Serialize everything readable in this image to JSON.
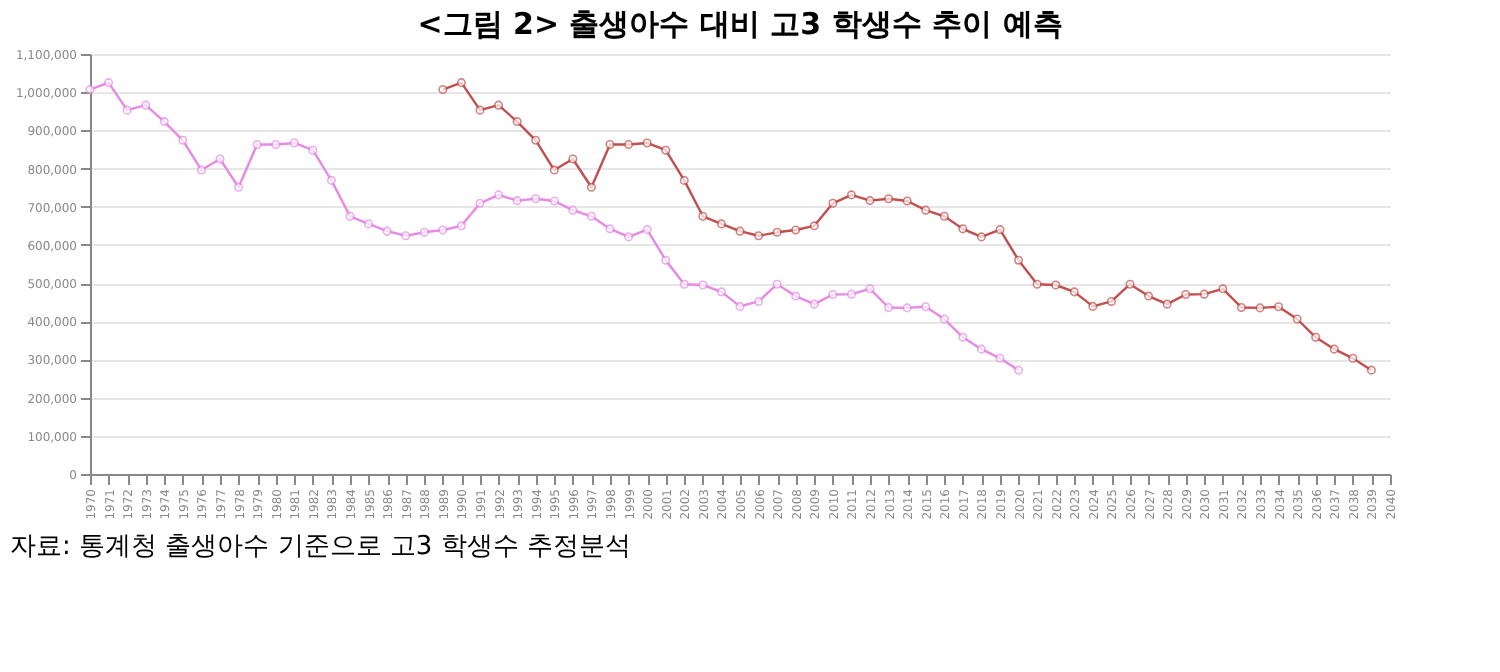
{
  "chart_data": {
    "type": "line",
    "title": "<그림 2> 출생아수 대비 고3 학생수 추이 예측",
    "annotations": [
      "자료: 통계청 출생아수 기준으로 고3 학생수 추정분석"
    ],
    "xlim": [
      1970,
      2040
    ],
    "xticks": [
      1970,
      1971,
      1972,
      1973,
      1974,
      1975,
      1976,
      1977,
      1978,
      1979,
      1980,
      1981,
      1982,
      1983,
      1984,
      1985,
      1986,
      1987,
      1988,
      1989,
      1990,
      1991,
      1992,
      1993,
      1994,
      1995,
      1996,
      1997,
      1998,
      1999,
      2000,
      2001,
      2002,
      2003,
      2004,
      2005,
      2006,
      2007,
      2008,
      2009,
      2010,
      2011,
      2012,
      2013,
      2014,
      2015,
      2016,
      2017,
      2018,
      2019,
      2020,
      2021,
      2022,
      2023,
      2024,
      2025,
      2026,
      2027,
      2028,
      2029,
      2030,
      2031,
      2032,
      2033,
      2034,
      2035,
      2036,
      2037,
      2038,
      2039,
      2040
    ],
    "ylim": [
      0,
      1100000
    ],
    "yticks": [
      0,
      {
        "value": 100000,
        "label": "100,000"
      },
      {
        "value": 200000,
        "label": "200,000"
      },
      {
        "value": 300000,
        "label": "300,000"
      },
      {
        "value": 400000,
        "label": "400,000"
      },
      {
        "value": 500000,
        "label": "500,000"
      },
      {
        "value": 600000,
        "label": "600,000"
      },
      {
        "value": 700000,
        "label": "700,000"
      },
      {
        "value": 800000,
        "label": "800,000"
      },
      {
        "value": 900000,
        "label": "900,000"
      },
      {
        "value": 1000000,
        "label": "1,000,000"
      },
      {
        "value": 1100000,
        "label": "1,100,000"
      }
    ],
    "grid": "y",
    "marker": "circle",
    "line_style": "solid",
    "legend": false,
    "series": [
      {
        "color": "#e68ae6",
        "x": [
          1970,
          1971,
          1972,
          1973,
          1974,
          1975,
          1976,
          1977,
          1978,
          1979,
          1980,
          1981,
          1982,
          1983,
          1984,
          1985,
          1986,
          1987,
          1988,
          1989,
          1990,
          1991,
          1992,
          1993,
          1994,
          1995,
          1996,
          1997,
          1998,
          1999,
          2000,
          2001,
          2002,
          2003,
          2004,
          2005,
          2006,
          2007,
          2008,
          2009,
          2010,
          2011,
          2012,
          2013,
          2014,
          2015,
          2016,
          2017,
          2018,
          2019,
          2020
        ],
        "values": [
          1007000,
          1025000,
          953000,
          966000,
          923000,
          874000,
          796000,
          825000,
          751000,
          863000,
          863000,
          867000,
          848000,
          769000,
          675000,
          655000,
          636000,
          624000,
          633000,
          639000,
          650000,
          709000,
          731000,
          716000,
          721000,
          715000,
          691000,
          675000,
          642000,
          621000,
          640000,
          560000,
          497000,
          495000,
          477000,
          439000,
          452000,
          497000,
          466000,
          445000,
          470000,
          471000,
          485000,
          436000,
          435000,
          438000,
          406000,
          358000,
          327000,
          303000,
          272000
        ]
      },
      {
        "color": "#c0504d",
        "x": [
          1989,
          1990,
          1991,
          1992,
          1993,
          1994,
          1995,
          1996,
          1997,
          1998,
          1999,
          2000,
          2001,
          2002,
          2003,
          2004,
          2005,
          2006,
          2007,
          2008,
          2009,
          2010,
          2011,
          2012,
          2013,
          2014,
          2015,
          2016,
          2017,
          2018,
          2019,
          2020,
          2021,
          2022,
          2023,
          2024,
          2025,
          2026,
          2027,
          2028,
          2029,
          2030,
          2031,
          2032,
          2033,
          2034,
          2035,
          2036,
          2037,
          2038,
          2039
        ],
        "values": [
          1007000,
          1025000,
          953000,
          966000,
          923000,
          874000,
          796000,
          825000,
          751000,
          863000,
          863000,
          867000,
          848000,
          769000,
          675000,
          655000,
          636000,
          624000,
          633000,
          639000,
          650000,
          709000,
          731000,
          716000,
          721000,
          715000,
          691000,
          675000,
          642000,
          621000,
          640000,
          560000,
          497000,
          495000,
          477000,
          439000,
          452000,
          497000,
          466000,
          445000,
          470000,
          471000,
          485000,
          436000,
          435000,
          438000,
          406000,
          358000,
          327000,
          303000,
          272000
        ]
      }
    ]
  }
}
